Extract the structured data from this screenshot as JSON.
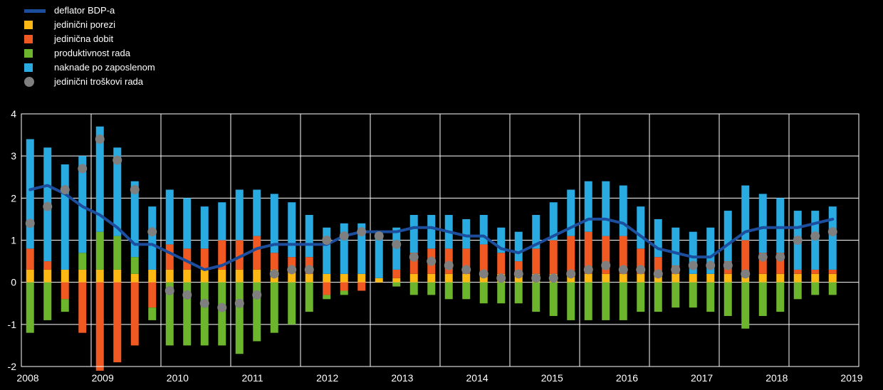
{
  "colors": {
    "background": "#000000",
    "grid": "#ffffff",
    "axis_text": "#ffffff",
    "line": "#1c4e9d",
    "taxes": "#fdb813",
    "profit": "#f05a22",
    "productivity": "#6cb52d",
    "compensation": "#29abe2",
    "dot": "#7f7f7f"
  },
  "legend": {
    "items": [
      {
        "label": "deflator BDP-a",
        "shape": "line",
        "color": "#1c4e9d"
      },
      {
        "label": "jedinični porezi",
        "shape": "square",
        "color": "#fdb813"
      },
      {
        "label": "jedinična dobit",
        "shape": "square",
        "color": "#f05a22"
      },
      {
        "label": "produktivnost rada",
        "shape": "square",
        "color": "#6cb52d"
      },
      {
        "label": "naknade po zaposlenom",
        "shape": "square",
        "color": "#29abe2"
      },
      {
        "label": "jedinični troškovi rada",
        "shape": "dot",
        "color": "#7f7f7f"
      }
    ]
  },
  "chart_data": {
    "type": "bar",
    "stacked": true,
    "grid": true,
    "legend_position": "top-left",
    "ylim": [
      -2,
      4
    ],
    "ytick_step": 1,
    "x": [
      "2008 Q1",
      "2008 Q2",
      "2008 Q3",
      "2008 Q4",
      "2009 Q1",
      "2009 Q2",
      "2009 Q3",
      "2009 Q4",
      "2010 Q1",
      "2010 Q2",
      "2010 Q3",
      "2010 Q4",
      "2011 Q1",
      "2011 Q2",
      "2011 Q3",
      "2011 Q4",
      "2012 Q1",
      "2012 Q2",
      "2012 Q3",
      "2012 Q4",
      "2013 Q1",
      "2013 Q2",
      "2013 Q3",
      "2013 Q4",
      "2014 Q1",
      "2014 Q2",
      "2014 Q3",
      "2014 Q4",
      "2015 Q1",
      "2015 Q2",
      "2015 Q3",
      "2015 Q4",
      "2016 Q1",
      "2016 Q2",
      "2016 Q3",
      "2016 Q4",
      "2017 Q1",
      "2017 Q2",
      "2017 Q3",
      "2017 Q4",
      "2018 Q1",
      "2018 Q2",
      "2018 Q3",
      "2018 Q4",
      "2019 Q1",
      "2019 Q2",
      "2019 Q3"
    ],
    "x_tick_labels": [
      "2008",
      "2009",
      "2010",
      "2011",
      "2012",
      "2013",
      "2014",
      "2015",
      "2016",
      "2017",
      "2018",
      "2019"
    ],
    "series": [
      {
        "name": "jedinični porezi",
        "type": "bar",
        "color": "#fdb813",
        "values": [
          0.3,
          0.3,
          0.3,
          0.3,
          0.3,
          0.3,
          0.2,
          0.3,
          0.3,
          0.3,
          0.3,
          0.3,
          0.3,
          0.3,
          0.3,
          0.3,
          0.2,
          0.2,
          0.2,
          0.2,
          0.1,
          0.1,
          0.2,
          0.2,
          0.2,
          0.2,
          0.2,
          0.2,
          0.2,
          0.2,
          0.2,
          0.2,
          0.2,
          0.2,
          0.2,
          0.2,
          0.2,
          0.2,
          0.2,
          0.2,
          0.2,
          0.2,
          0.2,
          0.2,
          0.2,
          0.2,
          0.2
        ]
      },
      {
        "name": "jedinična dobit",
        "type": "bar",
        "color": "#f05a22",
        "values": [
          0.5,
          0.2,
          -0.4,
          -1.2,
          -2.1,
          -1.9,
          -1.5,
          -0.6,
          0.6,
          0.5,
          0.5,
          0.7,
          0.7,
          0.8,
          0.4,
          0.3,
          0.4,
          -0.3,
          -0.2,
          -0.2,
          0.0,
          0.2,
          0.5,
          0.6,
          0.6,
          0.6,
          0.7,
          0.5,
          0.3,
          0.6,
          0.8,
          0.9,
          1.0,
          0.9,
          0.9,
          0.6,
          0.4,
          0.2,
          0.0,
          0.0,
          0.3,
          0.8,
          0.5,
          0.5,
          0.1,
          0.1,
          0.1
        ]
      },
      {
        "name": "produktivnost rada",
        "type": "bar",
        "color": "#6cb52d",
        "values": [
          -1.2,
          -0.9,
          -0.3,
          0.4,
          0.9,
          0.8,
          0.4,
          -0.3,
          -1.5,
          -1.5,
          -1.5,
          -1.5,
          -1.7,
          -1.4,
          -1.2,
          -1.0,
          -0.7,
          -0.1,
          -0.1,
          0.0,
          0.0,
          -0.1,
          -0.3,
          -0.3,
          -0.4,
          -0.4,
          -0.5,
          -0.5,
          -0.5,
          -0.7,
          -0.8,
          -0.9,
          -0.9,
          -0.9,
          -0.9,
          -0.7,
          -0.7,
          -0.6,
          -0.6,
          -0.7,
          -0.8,
          -1.1,
          -0.8,
          -0.7,
          -0.4,
          -0.3,
          -0.3
        ]
      },
      {
        "name": "naknade po zaposlenom",
        "type": "bar",
        "color": "#29abe2",
        "values": [
          2.6,
          2.7,
          2.5,
          2.3,
          2.5,
          2.1,
          1.8,
          1.5,
          1.3,
          1.2,
          1.0,
          0.9,
          1.2,
          1.1,
          1.4,
          1.3,
          1.0,
          1.1,
          1.2,
          1.2,
          1.1,
          1.0,
          0.9,
          0.8,
          0.8,
          0.7,
          0.7,
          0.6,
          0.7,
          0.8,
          0.9,
          1.1,
          1.2,
          1.3,
          1.2,
          1.0,
          0.9,
          0.9,
          1.0,
          1.1,
          1.2,
          1.3,
          1.4,
          1.3,
          1.4,
          1.4,
          1.5
        ]
      },
      {
        "name": "deflator BDP-a",
        "type": "line",
        "color": "#1c4e9d",
        "values": [
          2.2,
          2.3,
          2.1,
          1.8,
          1.6,
          1.3,
          0.9,
          0.9,
          0.7,
          0.5,
          0.3,
          0.4,
          0.6,
          0.8,
          0.9,
          0.9,
          0.9,
          0.9,
          1.1,
          1.2,
          1.2,
          1.2,
          1.3,
          1.3,
          1.2,
          1.1,
          1.1,
          0.8,
          0.7,
          0.9,
          1.1,
          1.3,
          1.5,
          1.5,
          1.4,
          1.1,
          0.8,
          0.7,
          0.6,
          0.6,
          0.9,
          1.2,
          1.3,
          1.3,
          1.3,
          1.4,
          1.5
        ]
      },
      {
        "name": "jedinični troškovi rada",
        "type": "scatter",
        "color": "#7f7f7f",
        "values": [
          1.4,
          1.8,
          2.2,
          2.7,
          3.4,
          2.9,
          2.2,
          1.2,
          -0.2,
          -0.3,
          -0.5,
          -0.6,
          -0.5,
          -0.3,
          0.2,
          0.3,
          0.3,
          1.0,
          1.1,
          1.2,
          1.1,
          0.9,
          0.6,
          0.5,
          0.4,
          0.3,
          0.2,
          0.1,
          0.2,
          0.1,
          0.1,
          0.2,
          0.3,
          0.4,
          0.3,
          0.3,
          0.2,
          0.3,
          0.4,
          0.4,
          0.4,
          0.2,
          0.6,
          0.6,
          1.0,
          1.1,
          1.2
        ]
      }
    ]
  }
}
